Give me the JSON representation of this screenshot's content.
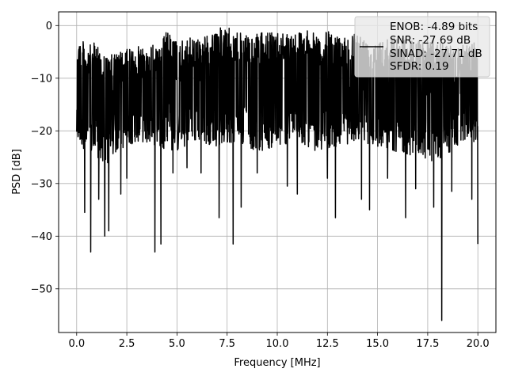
{
  "chart_data": {
    "type": "line",
    "xlabel": "Frequency [MHz]",
    "ylabel": "PSD [dB]",
    "xlim": [
      -0.9,
      20.9
    ],
    "ylim": [
      -58.3,
      2.6
    ],
    "xticks": [
      0.0,
      2.5,
      5.0,
      7.5,
      10.0,
      12.5,
      15.0,
      17.5,
      20.0
    ],
    "xtick_labels": [
      "0.0",
      "2.5",
      "5.0",
      "7.5",
      "10.0",
      "12.5",
      "15.0",
      "17.5",
      "20.0"
    ],
    "yticks": [
      0,
      -10,
      -20,
      -30,
      -40,
      -50
    ],
    "ytick_labels": [
      "0",
      "−10",
      "−20",
      "−30",
      "−40",
      "−50"
    ],
    "grid": true,
    "legend_position": "top-right",
    "line_color": "#000000",
    "series": [
      {
        "name": "ENOB: -4.89 bits\nSNR: -27.69 dB\nSINAD: -27.71 dB\nSFDR: 0.19",
        "legend_lines": [
          "ENOB: -4.89 bits",
          "SNR: -27.69 dB",
          "SINAD: -27.71 dB",
          "SFDR: 0.19"
        ],
        "x_range": [
          0.0,
          20.0
        ],
        "upper_envelope": [
          [
            0.0,
            -1
          ],
          [
            0.5,
            -4
          ],
          [
            1.0,
            -3
          ],
          [
            1.5,
            -6
          ],
          [
            2.0,
            -5
          ],
          [
            3.0,
            -4
          ],
          [
            4.0,
            -3.5
          ],
          [
            4.5,
            -1
          ],
          [
            5.0,
            -3
          ],
          [
            6.0,
            -2
          ],
          [
            7.0,
            -1.5
          ],
          [
            7.2,
            0
          ],
          [
            8.0,
            -1
          ],
          [
            8.5,
            -2
          ],
          [
            9.0,
            -1.5
          ],
          [
            10.0,
            -1
          ],
          [
            11.0,
            -1
          ],
          [
            11.5,
            -0.5
          ],
          [
            12.0,
            -2
          ],
          [
            12.5,
            -1
          ],
          [
            13.0,
            -2
          ],
          [
            14.0,
            -1
          ],
          [
            14.5,
            -3
          ],
          [
            15.0,
            -2
          ],
          [
            16.0,
            -2
          ],
          [
            16.5,
            -2
          ],
          [
            17.0,
            -3
          ],
          [
            17.5,
            -2
          ],
          [
            18.0,
            -3
          ],
          [
            19.0,
            -4
          ],
          [
            20.0,
            -3
          ]
        ],
        "lower_envelope": [
          [
            0.0,
            -22
          ],
          [
            0.5,
            -24
          ],
          [
            1.0,
            -25
          ],
          [
            1.5,
            -27
          ],
          [
            2.0,
            -24
          ],
          [
            3.0,
            -22
          ],
          [
            4.0,
            -23
          ],
          [
            5.0,
            -24
          ],
          [
            6.0,
            -22
          ],
          [
            7.0,
            -23
          ],
          [
            8.0,
            -22
          ],
          [
            9.0,
            -24
          ],
          [
            10.0,
            -23
          ],
          [
            11.0,
            -22
          ],
          [
            12.0,
            -24
          ],
          [
            13.0,
            -23
          ],
          [
            14.0,
            -22
          ],
          [
            15.0,
            -23
          ],
          [
            16.0,
            -24
          ],
          [
            17.0,
            -25
          ],
          [
            18.0,
            -26
          ],
          [
            19.0,
            -23
          ],
          [
            20.0,
            -22
          ]
        ],
        "dips": [
          [
            0.4,
            -35.5
          ],
          [
            0.7,
            -43
          ],
          [
            1.1,
            -33
          ],
          [
            1.4,
            -40
          ],
          [
            1.6,
            -39
          ],
          [
            2.2,
            -32
          ],
          [
            2.5,
            -29
          ],
          [
            3.9,
            -43
          ],
          [
            4.2,
            -41.5
          ],
          [
            4.8,
            -28
          ],
          [
            5.5,
            -27
          ],
          [
            6.2,
            -28
          ],
          [
            7.1,
            -36.5
          ],
          [
            7.8,
            -41.5
          ],
          [
            8.2,
            -34.5
          ],
          [
            9.0,
            -28
          ],
          [
            10.5,
            -30.5
          ],
          [
            11.0,
            -32
          ],
          [
            12.5,
            -29
          ],
          [
            12.9,
            -36.5
          ],
          [
            14.2,
            -33
          ],
          [
            14.6,
            -35
          ],
          [
            15.5,
            -29
          ],
          [
            16.4,
            -36.5
          ],
          [
            16.9,
            -31
          ],
          [
            17.8,
            -34.5
          ],
          [
            18.2,
            -56
          ],
          [
            18.7,
            -31.5
          ],
          [
            19.7,
            -33
          ],
          [
            20.0,
            -41.5
          ]
        ]
      }
    ]
  }
}
